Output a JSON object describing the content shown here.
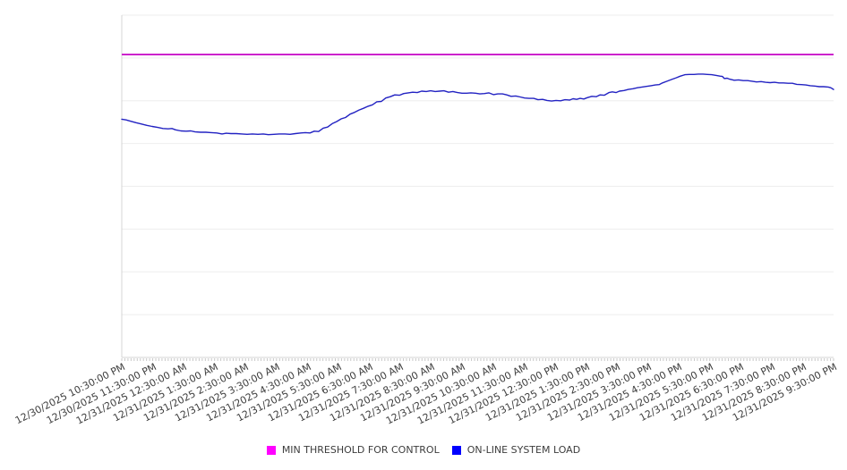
{
  "chart_data": {
    "type": "line",
    "title": "",
    "xlabel": "",
    "ylabel": "",
    "grid": "horizontal",
    "legend_position": "bottom-center",
    "x_axis": {
      "tick_labels": [
        "12/30/2025 10:30:00 PM",
        "12/30/2025 11:30:00 PM",
        "12/31/2025 12:30:00 AM",
        "12/31/2025 1:30:00 AM",
        "12/31/2025 2:30:00 AM",
        "12/31/2025 3:30:00 AM",
        "12/31/2025 4:30:00 AM",
        "12/31/2025 5:30:00 AM",
        "12/31/2025 6:30:00 AM",
        "12/31/2025 7:30:00 AM",
        "12/31/2025 8:30:00 AM",
        "12/31/2025 9:30:00 AM",
        "12/31/2025 10:30:00 AM",
        "12/31/2025 11:30:00 AM",
        "12/31/2025 12:30:00 PM",
        "12/31/2025 1:30:00 PM",
        "12/31/2025 2:30:00 PM",
        "12/31/2025 3:30:00 PM",
        "12/31/2025 4:30:00 PM",
        "12/31/2025 5:30:00 PM",
        "12/31/2025 6:30:00 PM",
        "12/31/2025 7:30:00 PM",
        "12/31/2025 8:30:00 PM",
        "12/31/2025 9:30:00 PM"
      ],
      "range_hours": [
        0,
        23
      ],
      "minor_tick_interval_hours": 0.1,
      "label_rotation_deg": -27
    },
    "y_axis": {
      "labels_visible": false,
      "ylim": [
        0,
        100
      ],
      "gridline_values": [
        0,
        12.5,
        25,
        37.5,
        50,
        62.5,
        75,
        87.5,
        100
      ]
    },
    "series": [
      {
        "name": "MIN THRESHOLD FOR CONTROL",
        "style": "horizontal-threshold",
        "color": "#cc22cc",
        "swatch_color": "#ff00ff",
        "value": 88.5
      },
      {
        "name": "ON-LINE SYSTEM LOAD",
        "style": "line",
        "color": "#2222c2",
        "swatch_color": "#0000ff",
        "points": [
          [
            0.0,
            69.6
          ],
          [
            0.14,
            69.4
          ],
          [
            0.29,
            69.0
          ],
          [
            0.46,
            68.6
          ],
          [
            0.64,
            68.2
          ],
          [
            0.81,
            67.8
          ],
          [
            0.98,
            67.5
          ],
          [
            1.16,
            67.2
          ],
          [
            1.33,
            66.9
          ],
          [
            1.5,
            66.8
          ],
          [
            1.62,
            66.9
          ],
          [
            1.74,
            66.5
          ],
          [
            1.91,
            66.2
          ],
          [
            2.08,
            66.1
          ],
          [
            2.23,
            66.2
          ],
          [
            2.37,
            65.9
          ],
          [
            2.55,
            65.8
          ],
          [
            2.72,
            65.8
          ],
          [
            2.89,
            65.7
          ],
          [
            3.07,
            65.6
          ],
          [
            3.24,
            65.3
          ],
          [
            3.38,
            65.5
          ],
          [
            3.53,
            65.4
          ],
          [
            3.7,
            65.4
          ],
          [
            3.88,
            65.3
          ],
          [
            4.05,
            65.2
          ],
          [
            4.22,
            65.3
          ],
          [
            4.4,
            65.2
          ],
          [
            4.57,
            65.3
          ],
          [
            4.74,
            65.1
          ],
          [
            4.92,
            65.2
          ],
          [
            5.09,
            65.3
          ],
          [
            5.27,
            65.3
          ],
          [
            5.44,
            65.2
          ],
          [
            5.61,
            65.4
          ],
          [
            5.79,
            65.6
          ],
          [
            5.93,
            65.7
          ],
          [
            6.08,
            65.6
          ],
          [
            6.22,
            66.1
          ],
          [
            6.36,
            66.0
          ],
          [
            6.51,
            67.0
          ],
          [
            6.65,
            67.3
          ],
          [
            6.8,
            68.3
          ],
          [
            6.94,
            68.9
          ],
          [
            7.09,
            69.7
          ],
          [
            7.23,
            70.1
          ],
          [
            7.38,
            71.1
          ],
          [
            7.52,
            71.6
          ],
          [
            7.67,
            72.3
          ],
          [
            7.81,
            72.8
          ],
          [
            7.96,
            73.4
          ],
          [
            8.1,
            73.8
          ],
          [
            8.24,
            74.7
          ],
          [
            8.39,
            74.8
          ],
          [
            8.53,
            75.8
          ],
          [
            8.68,
            76.2
          ],
          [
            8.82,
            76.7
          ],
          [
            8.97,
            76.6
          ],
          [
            9.11,
            77.1
          ],
          [
            9.26,
            77.3
          ],
          [
            9.4,
            77.5
          ],
          [
            9.55,
            77.4
          ],
          [
            9.69,
            77.8
          ],
          [
            9.84,
            77.7
          ],
          [
            9.98,
            77.9
          ],
          [
            10.13,
            77.7
          ],
          [
            10.27,
            77.8
          ],
          [
            10.41,
            77.9
          ],
          [
            10.56,
            77.5
          ],
          [
            10.7,
            77.7
          ],
          [
            10.85,
            77.4
          ],
          [
            10.99,
            77.2
          ],
          [
            11.14,
            77.2
          ],
          [
            11.28,
            77.3
          ],
          [
            11.43,
            77.2
          ],
          [
            11.57,
            77.0
          ],
          [
            11.72,
            77.1
          ],
          [
            11.86,
            77.3
          ],
          [
            12.01,
            76.8
          ],
          [
            12.15,
            77.0
          ],
          [
            12.3,
            77.0
          ],
          [
            12.44,
            76.7
          ],
          [
            12.58,
            76.3
          ],
          [
            12.73,
            76.4
          ],
          [
            12.87,
            76.1
          ],
          [
            13.02,
            75.8
          ],
          [
            13.16,
            75.7
          ],
          [
            13.31,
            75.7
          ],
          [
            13.45,
            75.3
          ],
          [
            13.6,
            75.4
          ],
          [
            13.74,
            75.1
          ],
          [
            13.89,
            74.9
          ],
          [
            14.03,
            75.1
          ],
          [
            14.18,
            75.0
          ],
          [
            14.32,
            75.3
          ],
          [
            14.47,
            75.2
          ],
          [
            14.58,
            75.6
          ],
          [
            14.7,
            75.4
          ],
          [
            14.81,
            75.7
          ],
          [
            14.93,
            75.5
          ],
          [
            15.04,
            75.9
          ],
          [
            15.19,
            76.3
          ],
          [
            15.33,
            76.2
          ],
          [
            15.45,
            76.7
          ],
          [
            15.59,
            76.6
          ],
          [
            15.74,
            77.4
          ],
          [
            15.85,
            77.6
          ],
          [
            15.97,
            77.4
          ],
          [
            16.08,
            77.8
          ],
          [
            16.23,
            78.0
          ],
          [
            16.37,
            78.3
          ],
          [
            16.52,
            78.5
          ],
          [
            16.66,
            78.8
          ],
          [
            16.81,
            79.0
          ],
          [
            16.95,
            79.2
          ],
          [
            17.1,
            79.4
          ],
          [
            17.24,
            79.6
          ],
          [
            17.36,
            79.7
          ],
          [
            17.47,
            80.2
          ],
          [
            17.62,
            80.7
          ],
          [
            17.76,
            81.2
          ],
          [
            17.91,
            81.7
          ],
          [
            18.05,
            82.2
          ],
          [
            18.2,
            82.6
          ],
          [
            18.34,
            82.7
          ],
          [
            18.49,
            82.7
          ],
          [
            18.63,
            82.8
          ],
          [
            18.78,
            82.8
          ],
          [
            18.92,
            82.7
          ],
          [
            19.06,
            82.6
          ],
          [
            19.21,
            82.4
          ],
          [
            19.33,
            82.2
          ],
          [
            19.41,
            82.1
          ],
          [
            19.47,
            81.5
          ],
          [
            19.56,
            81.6
          ],
          [
            19.64,
            81.3
          ],
          [
            19.79,
            81.0
          ],
          [
            19.93,
            81.1
          ],
          [
            20.08,
            80.9
          ],
          [
            20.22,
            80.9
          ],
          [
            20.37,
            80.7
          ],
          [
            20.51,
            80.5
          ],
          [
            20.66,
            80.6
          ],
          [
            20.8,
            80.4
          ],
          [
            20.95,
            80.3
          ],
          [
            21.09,
            80.4
          ],
          [
            21.24,
            80.2
          ],
          [
            21.38,
            80.2
          ],
          [
            21.53,
            80.1
          ],
          [
            21.67,
            80.1
          ],
          [
            21.81,
            79.8
          ],
          [
            21.96,
            79.7
          ],
          [
            22.1,
            79.6
          ],
          [
            22.25,
            79.4
          ],
          [
            22.39,
            79.3
          ],
          [
            22.54,
            79.1
          ],
          [
            22.68,
            79.1
          ],
          [
            22.83,
            79.0
          ],
          [
            22.91,
            78.8
          ],
          [
            23.0,
            78.3
          ]
        ]
      }
    ]
  },
  "colors": {
    "background": "#ffffff",
    "gridline": "#eeeeee",
    "axis": "#d4d4d4",
    "tick": "#c9c9c9",
    "label_text": "#3d3d3d"
  }
}
